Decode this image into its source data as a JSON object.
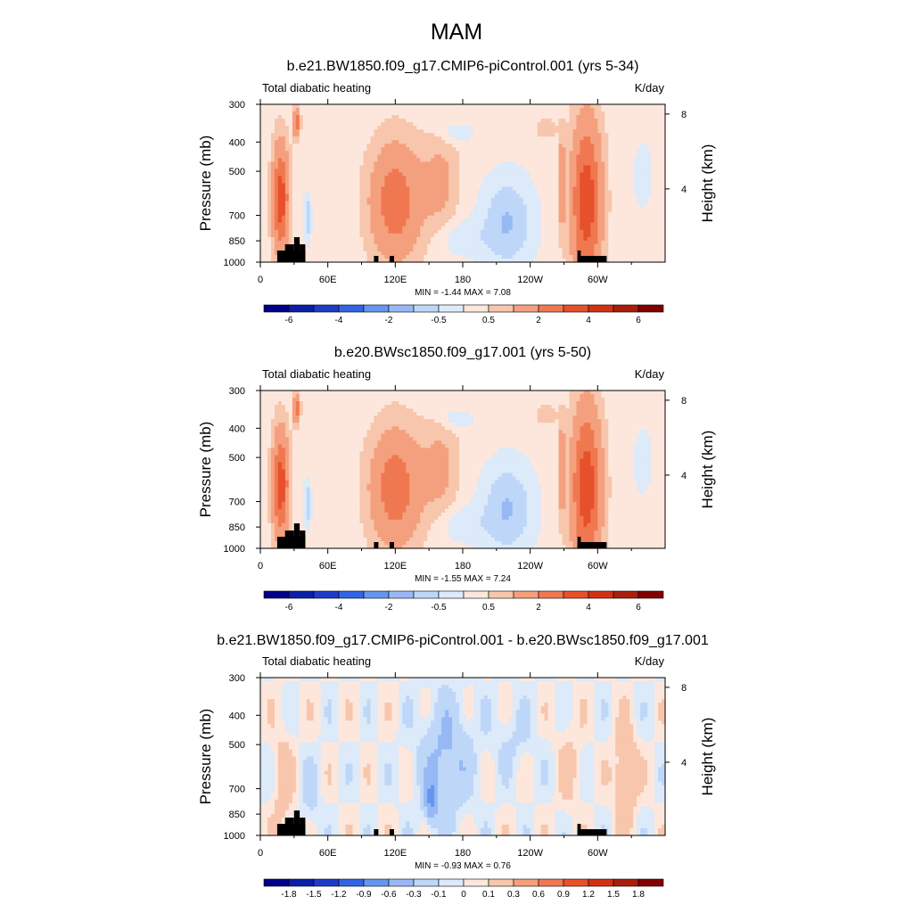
{
  "figure": {
    "title": "MAM"
  },
  "chart_data": [
    {
      "type": "heatmap",
      "title": "b.e21.BW1850.f09_g17.CMIP6-piControl.001 (yrs 5-34)",
      "left_label": "Total diabatic heating",
      "right_label": "K/day",
      "ylabel": "Pressure (mb)",
      "right_ylabel": "Height (km)",
      "x_ticks": [
        "0",
        "60E",
        "120E",
        "180",
        "120W",
        "60W"
      ],
      "y_ticks": [
        "300",
        "400",
        "500",
        "700",
        "850",
        "1000"
      ],
      "right_ticks": [
        "8",
        "4"
      ],
      "stats": "MIN =  -1.44  MAX =   7.08",
      "min": -1.44,
      "max": 7.08,
      "colorbar_labels": [
        "-6",
        "-4",
        "-2",
        "-0.5",
        "0.5",
        "2",
        "4",
        "6"
      ],
      "kind": "full"
    },
    {
      "type": "heatmap",
      "title": "b.e20.BWsc1850.f09_g17.001 (yrs 5-50)",
      "left_label": "Total diabatic heating",
      "right_label": "K/day",
      "ylabel": "Pressure (mb)",
      "right_ylabel": "Height (km)",
      "x_ticks": [
        "0",
        "60E",
        "120E",
        "180",
        "120W",
        "60W"
      ],
      "y_ticks": [
        "300",
        "400",
        "500",
        "700",
        "850",
        "1000"
      ],
      "right_ticks": [
        "8",
        "4"
      ],
      "stats": "MIN =  -1.55  MAX =   7.24",
      "min": -1.55,
      "max": 7.24,
      "colorbar_labels": [
        "-6",
        "-4",
        "-2",
        "-0.5",
        "0.5",
        "2",
        "4",
        "6"
      ],
      "kind": "full"
    },
    {
      "type": "heatmap",
      "title": "b.e21.BW1850.f09_g17.CMIP6-piControl.001 - b.e20.BWsc1850.f09_g17.001",
      "left_label": "Total diabatic heating",
      "right_label": "K/day",
      "ylabel": "Pressure (mb)",
      "right_ylabel": "Height (km)",
      "x_ticks": [
        "0",
        "60E",
        "120E",
        "180",
        "120W",
        "60W"
      ],
      "y_ticks": [
        "300",
        "400",
        "500",
        "700",
        "850",
        "1000"
      ],
      "right_ticks": [
        "8",
        "4"
      ],
      "stats": "MIN =  -0.93  MAX =   0.76",
      "min": -0.93,
      "max": 0.76,
      "colorbar_labels": [
        "-1.8",
        "-1.5",
        "-1.2",
        "-0.9",
        "-0.6",
        "-0.3",
        "-0.1",
        "0",
        "0.1",
        "0.3",
        "0.6",
        "0.9",
        "1.2",
        "1.5",
        "1.8"
      ],
      "kind": "diff"
    }
  ],
  "palette": [
    "#00008b",
    "#0a1ea8",
    "#1e3cc8",
    "#3264e6",
    "#6496f0",
    "#96b9f5",
    "#bed7f8",
    "#dceaf9",
    "#fde7dc",
    "#f7c6ac",
    "#f4a07e",
    "#f07850",
    "#e6502b",
    "#d23214",
    "#aa1e0a",
    "#820000"
  ]
}
